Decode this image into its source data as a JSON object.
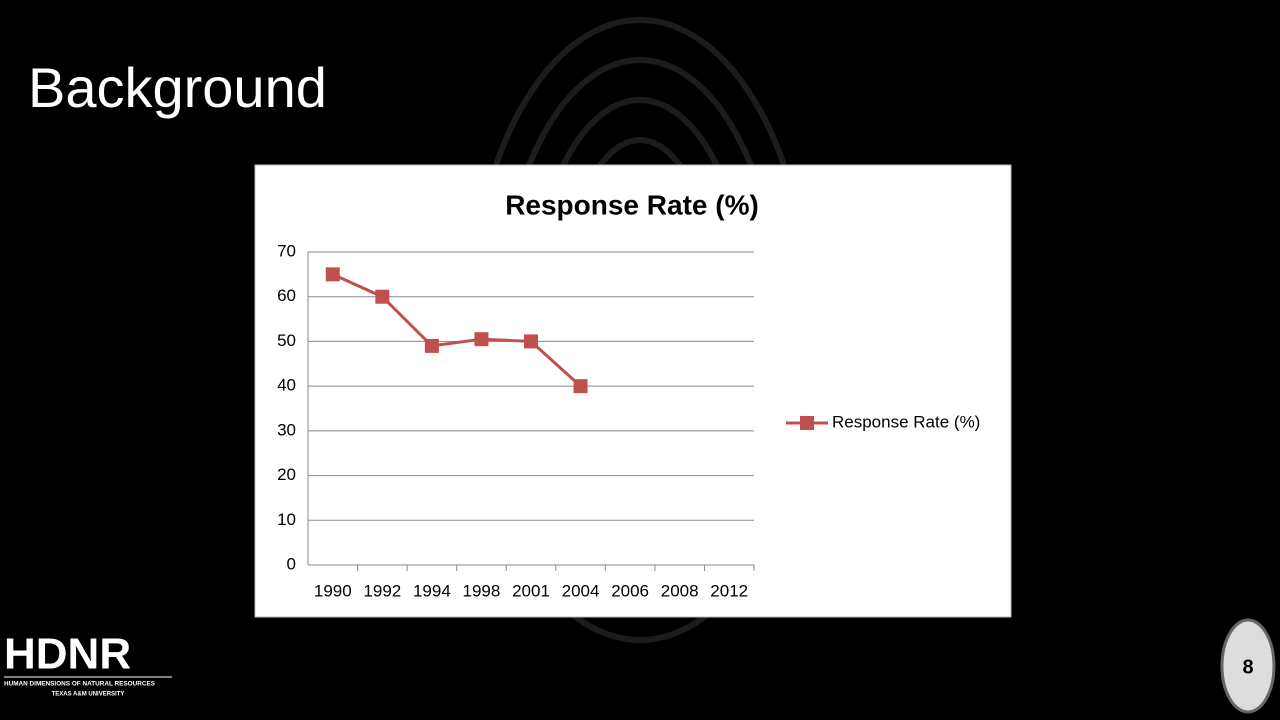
{
  "slide_title": "Background",
  "logo": {
    "name": "HDNR",
    "line1": "HUMAN DIMENSIONS OF NATURAL RESOURCES",
    "line2": "TEXAS A&M UNIVERSITY"
  },
  "page_number": "8",
  "chart_data": {
    "type": "line",
    "title": "Response Rate (%)",
    "categories": [
      "1990",
      "1992",
      "1994",
      "1998",
      "2001",
      "2004",
      "2006",
      "2008",
      "2012"
    ],
    "series": [
      {
        "name": "Response Rate (%)",
        "color": "#c0504d",
        "values": [
          65,
          60,
          49,
          50.5,
          50,
          40,
          null,
          null,
          null
        ]
      }
    ],
    "ylim": [
      0,
      70
    ],
    "yticks": [
      0,
      10,
      20,
      30,
      40,
      50,
      60,
      70
    ],
    "grid": true,
    "legend": "right"
  }
}
